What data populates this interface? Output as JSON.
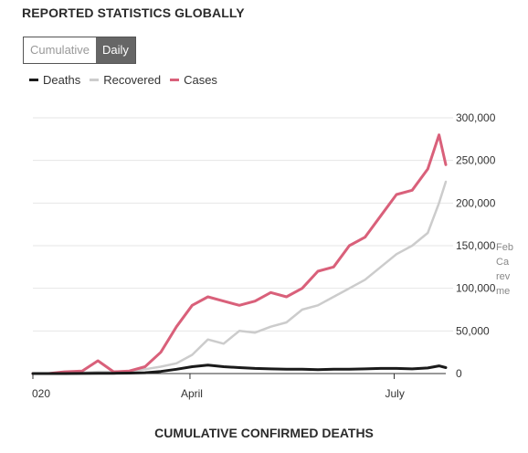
{
  "header": {
    "title": "REPORTED STATISTICS GLOBALLY"
  },
  "toggle": {
    "options": [
      "Cumulative",
      "Daily"
    ],
    "selected": "Daily"
  },
  "legend": [
    {
      "label": "Deaths",
      "color": "#1a1a1a"
    },
    {
      "label": "Recovered",
      "color": "#cccccc"
    },
    {
      "label": "Cases",
      "color": "#d9607a"
    }
  ],
  "note": {
    "lines": [
      "Feb",
      "Ca",
      "rev",
      "me"
    ]
  },
  "footer": {
    "next_title": "CUMULATIVE CONFIRMED DEATHS"
  },
  "chart_data": {
    "type": "line",
    "x_ticks": [
      "020",
      "April",
      "July"
    ],
    "y_ticks": [
      "300,000",
      "250,000",
      "200,000",
      "150,000",
      "100,000",
      "50,000",
      "0"
    ],
    "ylim": [
      0,
      300000
    ],
    "grid": true,
    "x": [
      "2020-01-22",
      "2020-01-29",
      "2020-02-05",
      "2020-02-13",
      "2020-02-20",
      "2020-02-27",
      "2020-03-05",
      "2020-03-12",
      "2020-03-19",
      "2020-03-26",
      "2020-04-02",
      "2020-04-09",
      "2020-04-16",
      "2020-04-23",
      "2020-04-30",
      "2020-05-07",
      "2020-05-14",
      "2020-05-21",
      "2020-05-28",
      "2020-06-04",
      "2020-06-11",
      "2020-06-18",
      "2020-06-25",
      "2020-07-02",
      "2020-07-09",
      "2020-07-16",
      "2020-07-21",
      "2020-07-24"
    ],
    "series": [
      {
        "name": "Cases",
        "color": "#d9607a",
        "values": [
          0,
          0,
          2000,
          3000,
          15000,
          2000,
          3000,
          8000,
          25000,
          55000,
          80000,
          90000,
          85000,
          80000,
          85000,
          95000,
          90000,
          100000,
          120000,
          125000,
          150000,
          160000,
          185000,
          210000,
          215000,
          240000,
          280000,
          245000
        ]
      },
      {
        "name": "Recovered",
        "color": "#cccccc",
        "values": [
          0,
          0,
          0,
          1000,
          2000,
          2000,
          3000,
          5000,
          8000,
          12000,
          22000,
          40000,
          35000,
          50000,
          48000,
          55000,
          60000,
          75000,
          80000,
          90000,
          100000,
          110000,
          125000,
          140000,
          150000,
          165000,
          200000,
          225000
        ]
      },
      {
        "name": "Deaths",
        "color": "#1a1a1a",
        "values": [
          0,
          0,
          0,
          100,
          200,
          300,
          500,
          1000,
          2500,
          5000,
          8000,
          10000,
          8000,
          7000,
          6000,
          5500,
          5000,
          5000,
          4500,
          5000,
          5000,
          5500,
          6000,
          6000,
          5500,
          6500,
          9000,
          7000
        ]
      }
    ]
  }
}
